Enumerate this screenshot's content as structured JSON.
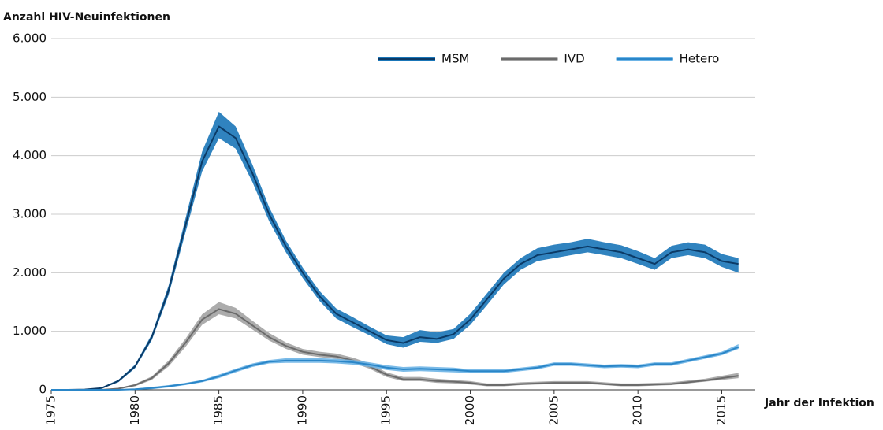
{
  "chart_data": {
    "type": "line",
    "y_label": "Anzahl HIV-Neuinfektionen",
    "x_label": "Jahr der Infektion",
    "x": [
      1975,
      1976,
      1977,
      1978,
      1979,
      1980,
      1981,
      1982,
      1983,
      1984,
      1985,
      1986,
      1987,
      1988,
      1989,
      1990,
      1991,
      1992,
      1993,
      1994,
      1995,
      1996,
      1997,
      1998,
      1999,
      2000,
      2001,
      2002,
      2003,
      2004,
      2005,
      2006,
      2007,
      2008,
      2009,
      2010,
      2011,
      2012,
      2013,
      2014,
      2015,
      2016
    ],
    "xlim": [
      1975,
      2017
    ],
    "xticks": [
      1975,
      1980,
      1985,
      1990,
      1995,
      2000,
      2005,
      2010,
      2015
    ],
    "ylim": [
      0,
      6000
    ],
    "yticks": [
      0,
      {
        "value": 1000,
        "label": "1.000"
      },
      {
        "value": 2000,
        "label": "2.000"
      },
      {
        "value": 3000,
        "label": "3.000"
      },
      {
        "value": 4000,
        "label": "4.000"
      },
      {
        "value": 5000,
        "label": "5.000"
      },
      {
        "value": 6000,
        "label": "6.000"
      }
    ],
    "grid": true,
    "legend": "top-right",
    "series": [
      {
        "name": "MSM",
        "color": "#0b3a66",
        "band_color": "#1a76b8",
        "values": [
          0,
          0,
          5,
          30,
          150,
          400,
          900,
          1700,
          2800,
          3900,
          4500,
          4300,
          3700,
          3000,
          2450,
          2000,
          1600,
          1300,
          1150,
          1000,
          850,
          800,
          900,
          870,
          950,
          1200,
          1550,
          1900,
          2150,
          2300,
          2350,
          2400,
          2450,
          2400,
          2350,
          2250,
          2150,
          2350,
          2400,
          2350,
          2200,
          2150
        ],
        "lower": [
          0,
          0,
          0,
          20,
          130,
          370,
          850,
          1620,
          2680,
          3730,
          4300,
          4120,
          3550,
          2880,
          2350,
          1910,
          1520,
          1220,
          1070,
          930,
          780,
          720,
          820,
          800,
          870,
          1110,
          1450,
          1800,
          2050,
          2200,
          2250,
          2300,
          2350,
          2300,
          2250,
          2150,
          2050,
          2250,
          2300,
          2250,
          2100,
          2000
        ],
        "upper": [
          0,
          0,
          10,
          40,
          170,
          430,
          950,
          1780,
          2920,
          4070,
          4750,
          4500,
          3850,
          3120,
          2550,
          2090,
          1690,
          1390,
          1240,
          1080,
          930,
          900,
          1020,
          980,
          1040,
          1300,
          1650,
          2000,
          2250,
          2420,
          2480,
          2520,
          2580,
          2520,
          2470,
          2370,
          2250,
          2460,
          2520,
          2480,
          2320,
          2250
        ]
      },
      {
        "name": "IVD",
        "color": "#6b6b6b",
        "band_color": "#a3a3a3",
        "values": [
          0,
          0,
          0,
          0,
          20,
          80,
          200,
          450,
          800,
          1200,
          1380,
          1300,
          1100,
          900,
          750,
          650,
          600,
          570,
          500,
          400,
          260,
          180,
          180,
          150,
          140,
          120,
          80,
          80,
          100,
          110,
          120,
          120,
          120,
          100,
          80,
          80,
          90,
          100,
          130,
          160,
          200,
          240
        ],
        "lower": [
          0,
          0,
          0,
          0,
          10,
          60,
          170,
          400,
          730,
          1110,
          1290,
          1220,
          1030,
          840,
          700,
          600,
          560,
          530,
          460,
          360,
          220,
          150,
          150,
          120,
          110,
          90,
          60,
          60,
          80,
          90,
          100,
          100,
          100,
          80,
          60,
          60,
          70,
          80,
          110,
          140,
          170,
          200
        ],
        "upper": [
          0,
          0,
          0,
          0,
          30,
          100,
          230,
          500,
          870,
          1290,
          1500,
          1400,
          1180,
          970,
          810,
          700,
          650,
          620,
          550,
          450,
          300,
          220,
          220,
          190,
          170,
          150,
          110,
          110,
          130,
          140,
          150,
          150,
          150,
          130,
          110,
          110,
          120,
          130,
          160,
          190,
          240,
          290
        ]
      },
      {
        "name": "Hetero",
        "color": "#2a86c8",
        "band_color": "#6db4e6",
        "values": [
          0,
          0,
          0,
          0,
          0,
          10,
          30,
          60,
          100,
          150,
          230,
          330,
          420,
          480,
          500,
          500,
          500,
          490,
          470,
          430,
          380,
          350,
          360,
          350,
          340,
          320,
          320,
          320,
          350,
          380,
          440,
          440,
          420,
          400,
          410,
          400,
          440,
          440,
          500,
          560,
          620,
          730
        ],
        "lower": [
          0,
          0,
          0,
          0,
          0,
          0,
          10,
          40,
          80,
          130,
          200,
          300,
          390,
          450,
          460,
          460,
          460,
          450,
          430,
          390,
          340,
          310,
          320,
          310,
          300,
          290,
          290,
          290,
          320,
          350,
          410,
          410,
          390,
          370,
          380,
          370,
          410,
          410,
          470,
          530,
          590,
          700
        ],
        "upper": [
          0,
          0,
          0,
          0,
          0,
          20,
          50,
          80,
          120,
          170,
          260,
          360,
          450,
          510,
          540,
          540,
          540,
          530,
          510,
          470,
          420,
          390,
          400,
          390,
          380,
          350,
          350,
          350,
          380,
          410,
          470,
          470,
          450,
          430,
          440,
          430,
          470,
          470,
          530,
          590,
          650,
          780
        ]
      }
    ]
  }
}
